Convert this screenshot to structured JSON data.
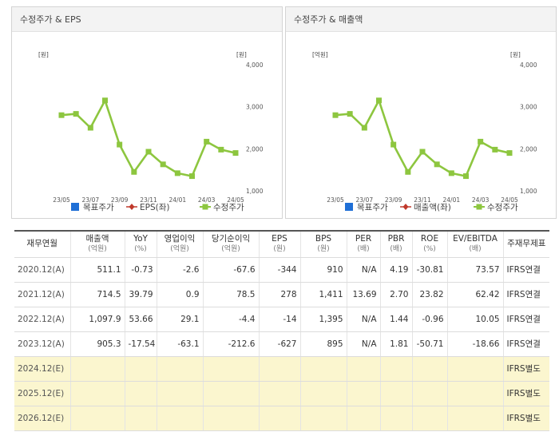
{
  "colors": {
    "line": "#8dc63f",
    "target": "#1f6fd6",
    "eps": "#c0392b",
    "estimate_row_bg": "#fbf6cf"
  },
  "left_panel": {
    "title": "수정주가 & EPS",
    "left_unit": "[원]",
    "right_unit": "[원]",
    "legend": [
      {
        "label": "목표주가",
        "icon": "blue-square-icon"
      },
      {
        "label": "EPS(좌)",
        "icon": "red-diamond-line-icon"
      },
      {
        "label": "수정주가",
        "icon": "green-square-line-icon"
      }
    ]
  },
  "right_panel": {
    "title": "수정주가 & 매출액",
    "left_unit": "[억원]",
    "right_unit": "[원]",
    "legend": [
      {
        "label": "목표주가",
        "icon": "blue-square-icon"
      },
      {
        "label": "매출액(좌)",
        "icon": "red-diamond-line-icon"
      },
      {
        "label": "수정주가",
        "icon": "green-square-line-icon"
      }
    ]
  },
  "chart_data": [
    {
      "type": "line",
      "title": "수정주가 & EPS",
      "x_tick_labels": [
        "23/05",
        "23/07",
        "23/09",
        "23/11",
        "24/01",
        "24/03",
        "24/05"
      ],
      "y_tick_labels": [
        "4,000",
        "3,000",
        "2,000",
        "1,000"
      ],
      "ylim": [
        1000,
        4000
      ],
      "series": [
        {
          "name": "수정주가",
          "values": [
            2800,
            2830,
            2500,
            3150,
            2100,
            1450,
            1930,
            1630,
            1420,
            1350,
            2170,
            1980,
            1900
          ]
        }
      ]
    },
    {
      "type": "line",
      "title": "수정주가 & 매출액",
      "x_tick_labels": [
        "23/05",
        "23/07",
        "23/09",
        "23/11",
        "24/01",
        "24/03",
        "24/05"
      ],
      "y_tick_labels": [
        "4,000",
        "3,000",
        "2,000",
        "1,000"
      ],
      "ylim": [
        1000,
        4000
      ],
      "series": [
        {
          "name": "수정주가",
          "values": [
            2800,
            2830,
            2500,
            3150,
            2100,
            1450,
            1930,
            1630,
            1420,
            1350,
            2170,
            1980,
            1900
          ]
        }
      ]
    }
  ],
  "table": {
    "columns": [
      {
        "label": "재무연월",
        "unit": ""
      },
      {
        "label": "매출액",
        "unit": "(억원)"
      },
      {
        "label": "YoY",
        "unit": "(%)"
      },
      {
        "label": "영업이익",
        "unit": "(억원)"
      },
      {
        "label": "당기순이익",
        "unit": "(억원)"
      },
      {
        "label": "EPS",
        "unit": "(원)"
      },
      {
        "label": "BPS",
        "unit": "(원)"
      },
      {
        "label": "PER",
        "unit": "(배)"
      },
      {
        "label": "PBR",
        "unit": "(배)"
      },
      {
        "label": "ROE",
        "unit": "(%)"
      },
      {
        "label": "EV/EBITDA",
        "unit": "(배)"
      },
      {
        "label": "주재무제표",
        "unit": ""
      }
    ],
    "rows": [
      [
        "2020.12(A)",
        "511.1",
        "-0.73",
        "-2.6",
        "-67.6",
        "-344",
        "910",
        "N/A",
        "4.19",
        "-30.81",
        "73.57",
        "IFRS연결"
      ],
      [
        "2021.12(A)",
        "714.5",
        "39.79",
        "0.9",
        "78.5",
        "278",
        "1,411",
        "13.69",
        "2.70",
        "23.82",
        "62.42",
        "IFRS연결"
      ],
      [
        "2022.12(A)",
        "1,097.9",
        "53.66",
        "29.1",
        "-4.4",
        "-14",
        "1,395",
        "N/A",
        "1.44",
        "-0.96",
        "10.05",
        "IFRS연결"
      ],
      [
        "2023.12(A)",
        "905.3",
        "-17.54",
        "-63.1",
        "-212.6",
        "-627",
        "895",
        "N/A",
        "1.81",
        "-50.71",
        "-18.66",
        "IFRS연결"
      ],
      [
        "2024.12(E)",
        "",
        "",
        "",
        "",
        "",
        "",
        "",
        "",
        "",
        "",
        "IFRS별도"
      ],
      [
        "2025.12(E)",
        "",
        "",
        "",
        "",
        "",
        "",
        "",
        "",
        "",
        "",
        "IFRS별도"
      ],
      [
        "2026.12(E)",
        "",
        "",
        "",
        "",
        "",
        "",
        "",
        "",
        "",
        "",
        "IFRS별도"
      ]
    ]
  }
}
